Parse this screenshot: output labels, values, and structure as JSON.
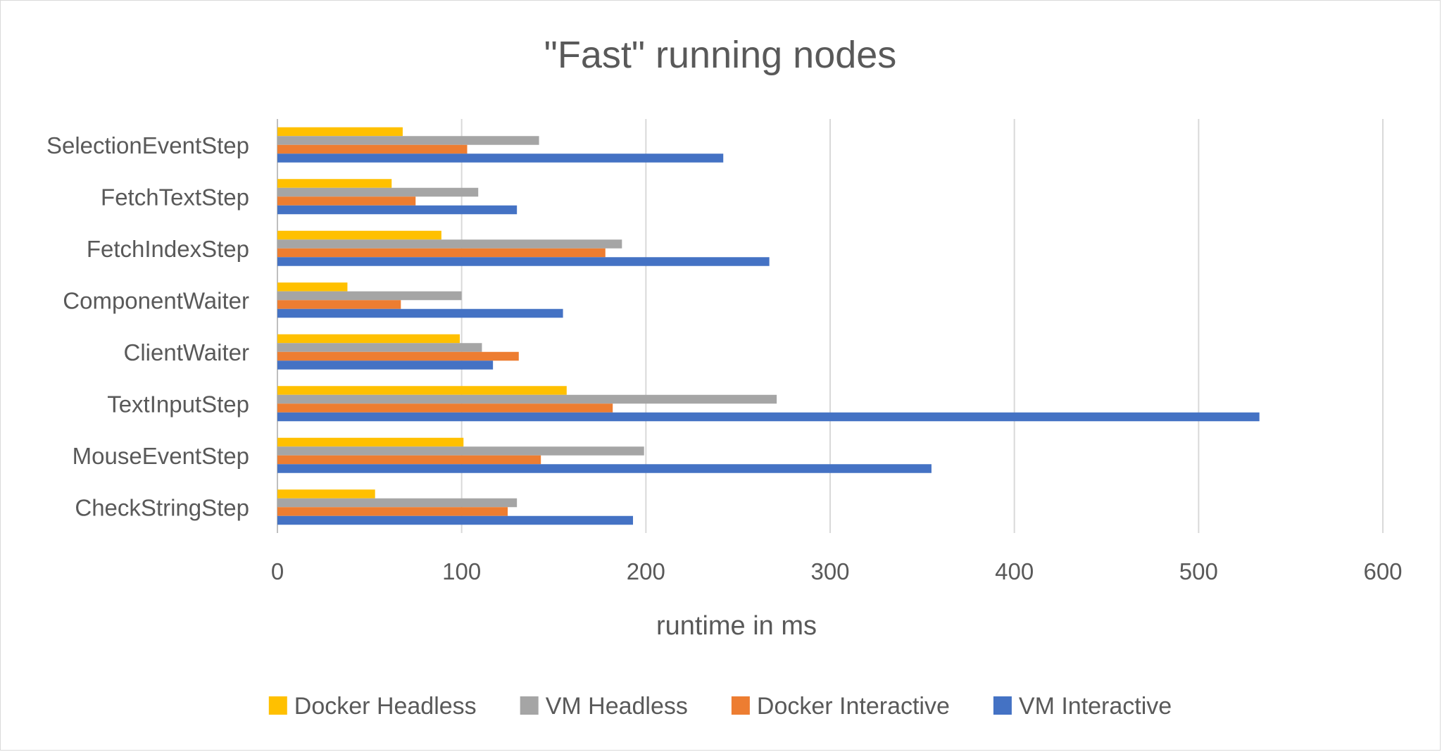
{
  "chart_data": {
    "type": "bar",
    "orientation": "horizontal",
    "title": "\"Fast\" running nodes",
    "xlabel": "runtime in ms",
    "ylabel": "",
    "xlim": [
      0,
      600
    ],
    "xticks": [
      0,
      100,
      200,
      300,
      400,
      500,
      600
    ],
    "grid": "vertical major gridlines",
    "legend_position": "bottom",
    "categories": [
      "SelectionEventStep",
      "FetchTextStep",
      "FetchIndexStep",
      "ComponentWaiter",
      "ClientWaiter",
      "TextInputStep",
      "MouseEventStep",
      "CheckStringStep"
    ],
    "series": [
      {
        "name": "Docker Headless",
        "color": "#FFC000",
        "values": [
          68,
          62,
          89,
          38,
          99,
          157,
          101,
          53
        ]
      },
      {
        "name": "VM Headless",
        "color": "#A5A5A5",
        "values": [
          142,
          109,
          187,
          100,
          111,
          271,
          199,
          130
        ]
      },
      {
        "name": "Docker Interactive",
        "color": "#ED7D31",
        "values": [
          103,
          75,
          178,
          67,
          131,
          182,
          143,
          125
        ]
      },
      {
        "name": "VM Interactive",
        "color": "#4472C4",
        "values": [
          242,
          130,
          267,
          155,
          117,
          533,
          355,
          193
        ]
      }
    ]
  }
}
